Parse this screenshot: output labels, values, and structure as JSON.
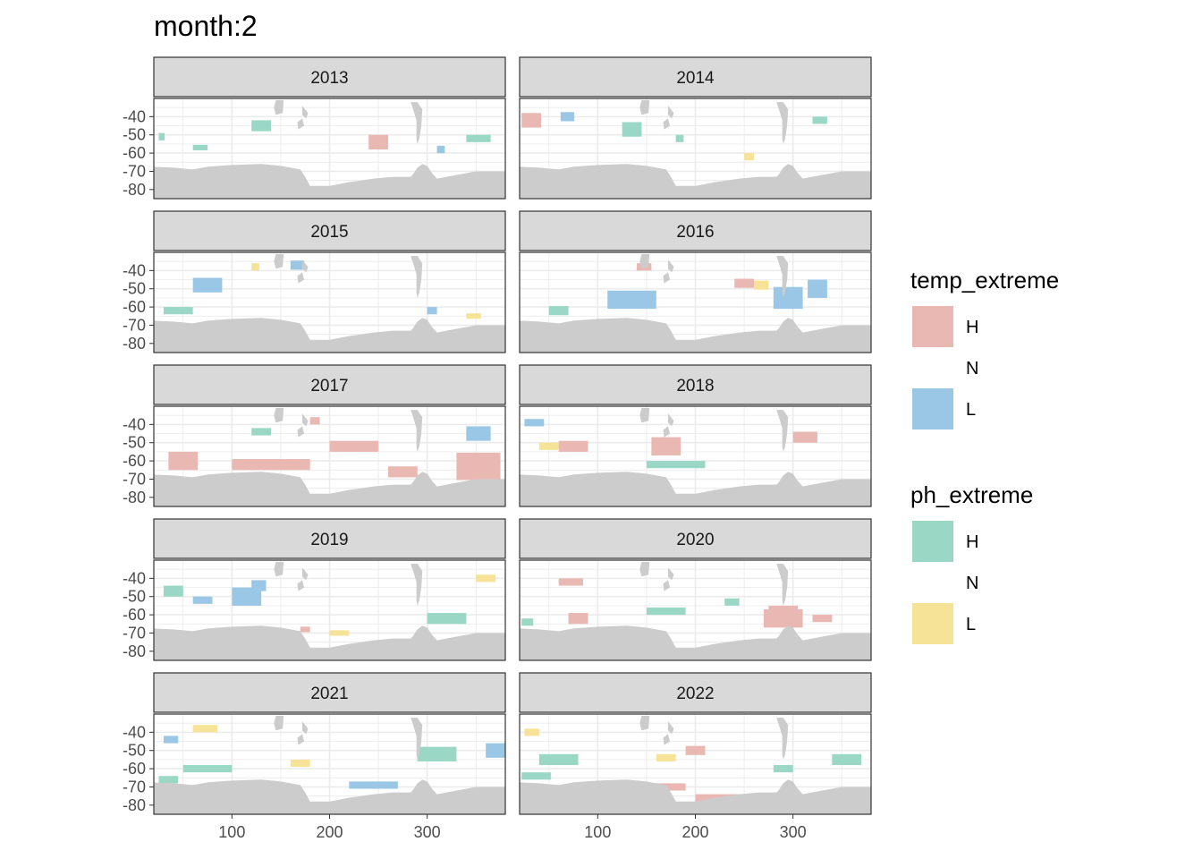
{
  "chart_data": {
    "type": "heatmap",
    "title": "month:2",
    "xlabel": "",
    "ylabel": "",
    "xlim": [
      20,
      380
    ],
    "ylim": [
      -85,
      -30
    ],
    "x_ticks": [
      100,
      200,
      300
    ],
    "y_ticks": [
      -40,
      -50,
      -60,
      -70,
      -80
    ],
    "x_tick_labels": [
      "100",
      "200",
      "300"
    ],
    "y_tick_labels": [
      "-40",
      "-50",
      "-60",
      "-70",
      "-80"
    ],
    "grid": true,
    "colors": {
      "temp_H": "#e9b8b3",
      "temp_L": "#9bc7e6",
      "ph_H": "#9ad8c5",
      "ph_L": "#f7e398",
      "land": "#cccccc",
      "strip": "#d9d9d9"
    },
    "legends": [
      {
        "title": "temp_extreme",
        "entries": [
          {
            "label": "H",
            "color": "#e9b8b3"
          },
          {
            "label": "N",
            "color": "none"
          },
          {
            "label": "L",
            "color": "#9bc7e6"
          }
        ]
      },
      {
        "title": "ph_extreme",
        "entries": [
          {
            "label": "H",
            "color": "#9ad8c5"
          },
          {
            "label": "N",
            "color": "none"
          },
          {
            "label": "L",
            "color": "#f7e398"
          }
        ]
      }
    ],
    "legend_position": "right",
    "land_outline": [
      [
        20,
        -67.5
      ],
      [
        40,
        -68
      ],
      [
        60,
        -69
      ],
      [
        75,
        -67.5
      ],
      [
        100,
        -66.5
      ],
      [
        130,
        -66
      ],
      [
        150,
        -67
      ],
      [
        170,
        -69
      ],
      [
        175,
        -73
      ],
      [
        180,
        -78
      ],
      [
        200,
        -78
      ],
      [
        220,
        -76
      ],
      [
        245,
        -74
      ],
      [
        265,
        -73
      ],
      [
        283,
        -73
      ],
      [
        285,
        -72
      ],
      [
        290,
        -68
      ],
      [
        295,
        -66
      ],
      [
        300,
        -67
      ],
      [
        305,
        -71
      ],
      [
        310,
        -74
      ],
      [
        330,
        -72
      ],
      [
        350,
        -70
      ],
      [
        380,
        -70
      ]
    ],
    "continent_tips": [
      {
        "name": "south-america",
        "points": [
          [
            283,
            -32
          ],
          [
            290,
            -32
          ],
          [
            295,
            -36
          ],
          [
            294,
            -45
          ],
          [
            292,
            -52
          ],
          [
            290,
            -55
          ],
          [
            289,
            -52
          ],
          [
            289,
            -42
          ],
          [
            285,
            -35
          ]
        ]
      },
      {
        "name": "new-zealand",
        "points": [
          [
            172,
            -34
          ],
          [
            178,
            -38
          ],
          [
            176,
            -41
          ],
          [
            172,
            -39
          ]
        ]
      },
      {
        "name": "new-zealand-south",
        "points": [
          [
            167,
            -43
          ],
          [
            172,
            -41
          ],
          [
            174,
            -45
          ],
          [
            168,
            -47
          ]
        ]
      },
      {
        "name": "tasmania",
        "points": [
          [
            145,
            -31
          ],
          [
            153,
            -31
          ],
          [
            152,
            -38
          ],
          [
            145,
            -39
          ],
          [
            143,
            -35
          ]
        ]
      }
    ],
    "panels": [
      {
        "year": "2013",
        "patches": [
          {
            "x": 240,
            "y": -54,
            "w": 20,
            "h": 8,
            "cat": "temp_H"
          },
          {
            "x": 120,
            "y": -45,
            "w": 20,
            "h": 6,
            "cat": "ph_H"
          },
          {
            "x": 340,
            "y": -52,
            "w": 25,
            "h": 4,
            "cat": "ph_H"
          },
          {
            "x": 310,
            "y": -58,
            "w": 8,
            "h": 4,
            "cat": "temp_L"
          },
          {
            "x": 25,
            "y": -51,
            "w": 6,
            "h": 4,
            "cat": "ph_H"
          },
          {
            "x": 60,
            "y": -57,
            "w": 15,
            "h": 3,
            "cat": "ph_H"
          }
        ]
      },
      {
        "year": "2014",
        "patches": [
          {
            "x": 22,
            "y": -42,
            "w": 20,
            "h": 8,
            "cat": "temp_H"
          },
          {
            "x": 62,
            "y": -40,
            "w": 14,
            "h": 5,
            "cat": "temp_L"
          },
          {
            "x": 125,
            "y": -47,
            "w": 20,
            "h": 8,
            "cat": "ph_H"
          },
          {
            "x": 250,
            "y": -62,
            "w": 10,
            "h": 4,
            "cat": "ph_L"
          },
          {
            "x": 320,
            "y": -42,
            "w": 15,
            "h": 4,
            "cat": "ph_H"
          },
          {
            "x": 180,
            "y": -52,
            "w": 8,
            "h": 4,
            "cat": "ph_H"
          }
        ]
      },
      {
        "year": "2015",
        "patches": [
          {
            "x": 160,
            "y": -37,
            "w": 14,
            "h": 5,
            "cat": "temp_L"
          },
          {
            "x": 60,
            "y": -48,
            "w": 30,
            "h": 8,
            "cat": "temp_L"
          },
          {
            "x": 30,
            "y": -62,
            "w": 30,
            "h": 4,
            "cat": "ph_H"
          },
          {
            "x": 300,
            "y": -62,
            "w": 10,
            "h": 4,
            "cat": "temp_L"
          },
          {
            "x": 340,
            "y": -65,
            "w": 15,
            "h": 3,
            "cat": "ph_L"
          },
          {
            "x": 120,
            "y": -38,
            "w": 8,
            "h": 4,
            "cat": "ph_L"
          }
        ]
      },
      {
        "year": "2016",
        "patches": [
          {
            "x": 110,
            "y": -56,
            "w": 50,
            "h": 10,
            "cat": "temp_L"
          },
          {
            "x": 280,
            "y": -55,
            "w": 30,
            "h": 12,
            "cat": "temp_L"
          },
          {
            "x": 315,
            "y": -50,
            "w": 20,
            "h": 10,
            "cat": "temp_L"
          },
          {
            "x": 240,
            "y": -47,
            "w": 20,
            "h": 5,
            "cat": "temp_H"
          },
          {
            "x": 260,
            "y": -48,
            "w": 15,
            "h": 5,
            "cat": "ph_L"
          },
          {
            "x": 50,
            "y": -62,
            "w": 20,
            "h": 5,
            "cat": "ph_H"
          },
          {
            "x": 140,
            "y": -38,
            "w": 15,
            "h": 4,
            "cat": "temp_H"
          }
        ]
      },
      {
        "year": "2017",
        "patches": [
          {
            "x": 35,
            "y": -60,
            "w": 30,
            "h": 10,
            "cat": "temp_H"
          },
          {
            "x": 100,
            "y": -62,
            "w": 80,
            "h": 6,
            "cat": "temp_H"
          },
          {
            "x": 200,
            "y": -52,
            "w": 50,
            "h": 6,
            "cat": "temp_H"
          },
          {
            "x": 330,
            "y": -63,
            "w": 45,
            "h": 15,
            "cat": "temp_H"
          },
          {
            "x": 260,
            "y": -66,
            "w": 30,
            "h": 6,
            "cat": "temp_H"
          },
          {
            "x": 340,
            "y": -45,
            "w": 25,
            "h": 8,
            "cat": "temp_L"
          },
          {
            "x": 120,
            "y": -44,
            "w": 20,
            "h": 4,
            "cat": "ph_H"
          },
          {
            "x": 180,
            "y": -38,
            "w": 10,
            "h": 4,
            "cat": "temp_H"
          }
        ]
      },
      {
        "year": "2018",
        "patches": [
          {
            "x": 155,
            "y": -52,
            "w": 30,
            "h": 10,
            "cat": "temp_H"
          },
          {
            "x": 60,
            "y": -52,
            "w": 30,
            "h": 6,
            "cat": "temp_H"
          },
          {
            "x": 25,
            "y": -39,
            "w": 20,
            "h": 4,
            "cat": "temp_L"
          },
          {
            "x": 40,
            "y": -52,
            "w": 20,
            "h": 4,
            "cat": "ph_L"
          },
          {
            "x": 300,
            "y": -47,
            "w": 25,
            "h": 6,
            "cat": "temp_H"
          },
          {
            "x": 150,
            "y": -62,
            "w": 60,
            "h": 4,
            "cat": "ph_H"
          },
          {
            "x": 360,
            "y": -72,
            "w": 15,
            "h": 3,
            "cat": "ph_L"
          }
        ]
      },
      {
        "year": "2019",
        "patches": [
          {
            "x": 100,
            "y": -50,
            "w": 30,
            "h": 10,
            "cat": "temp_L"
          },
          {
            "x": 120,
            "y": -44,
            "w": 15,
            "h": 6,
            "cat": "temp_L"
          },
          {
            "x": 30,
            "y": -47,
            "w": 20,
            "h": 6,
            "cat": "ph_H"
          },
          {
            "x": 60,
            "y": -52,
            "w": 20,
            "h": 4,
            "cat": "temp_L"
          },
          {
            "x": 300,
            "y": -62,
            "w": 40,
            "h": 6,
            "cat": "ph_H"
          },
          {
            "x": 350,
            "y": -40,
            "w": 20,
            "h": 4,
            "cat": "ph_L"
          },
          {
            "x": 200,
            "y": -70,
            "w": 20,
            "h": 3,
            "cat": "ph_L"
          },
          {
            "x": 170,
            "y": -68,
            "w": 10,
            "h": 3,
            "cat": "temp_H"
          }
        ]
      },
      {
        "year": "2020",
        "patches": [
          {
            "x": 270,
            "y": -62,
            "w": 40,
            "h": 10,
            "cat": "temp_H"
          },
          {
            "x": 275,
            "y": -58,
            "w": 30,
            "h": 6,
            "cat": "temp_H"
          },
          {
            "x": 70,
            "y": -62,
            "w": 20,
            "h": 6,
            "cat": "temp_H"
          },
          {
            "x": 150,
            "y": -58,
            "w": 40,
            "h": 4,
            "cat": "ph_H"
          },
          {
            "x": 22,
            "y": -64,
            "w": 12,
            "h": 4,
            "cat": "ph_H"
          },
          {
            "x": 230,
            "y": -53,
            "w": 15,
            "h": 4,
            "cat": "ph_H"
          },
          {
            "x": 320,
            "y": -62,
            "w": 20,
            "h": 4,
            "cat": "temp_H"
          },
          {
            "x": 60,
            "y": -42,
            "w": 25,
            "h": 4,
            "cat": "temp_H"
          }
        ]
      },
      {
        "year": "2021",
        "patches": [
          {
            "x": 220,
            "y": -69,
            "w": 50,
            "h": 4,
            "cat": "temp_L"
          },
          {
            "x": 360,
            "y": -50,
            "w": 20,
            "h": 8,
            "cat": "temp_L"
          },
          {
            "x": 50,
            "y": -60,
            "w": 50,
            "h": 4,
            "cat": "ph_H"
          },
          {
            "x": 25,
            "y": -66,
            "w": 20,
            "h": 4,
            "cat": "ph_H"
          },
          {
            "x": 30,
            "y": -44,
            "w": 15,
            "h": 4,
            "cat": "temp_L"
          },
          {
            "x": 60,
            "y": -38,
            "w": 25,
            "h": 4,
            "cat": "ph_L"
          },
          {
            "x": 290,
            "y": -52,
            "w": 40,
            "h": 8,
            "cat": "ph_H"
          },
          {
            "x": 160,
            "y": -57,
            "w": 20,
            "h": 4,
            "cat": "ph_L"
          }
        ]
      },
      {
        "year": "2022",
        "patches": [
          {
            "x": 200,
            "y": -76,
            "w": 60,
            "h": 4,
            "cat": "temp_H"
          },
          {
            "x": 150,
            "y": -70,
            "w": 40,
            "h": 4,
            "cat": "temp_H"
          },
          {
            "x": 40,
            "y": -55,
            "w": 40,
            "h": 6,
            "cat": "ph_H"
          },
          {
            "x": 22,
            "y": -64,
            "w": 30,
            "h": 4,
            "cat": "ph_H"
          },
          {
            "x": 25,
            "y": -40,
            "w": 15,
            "h": 4,
            "cat": "ph_L"
          },
          {
            "x": 190,
            "y": -50,
            "w": 20,
            "h": 5,
            "cat": "temp_H"
          },
          {
            "x": 160,
            "y": -54,
            "w": 20,
            "h": 4,
            "cat": "ph_L"
          },
          {
            "x": 340,
            "y": -55,
            "w": 30,
            "h": 6,
            "cat": "ph_H"
          },
          {
            "x": 280,
            "y": -60,
            "w": 20,
            "h": 4,
            "cat": "ph_H"
          }
        ]
      }
    ]
  }
}
